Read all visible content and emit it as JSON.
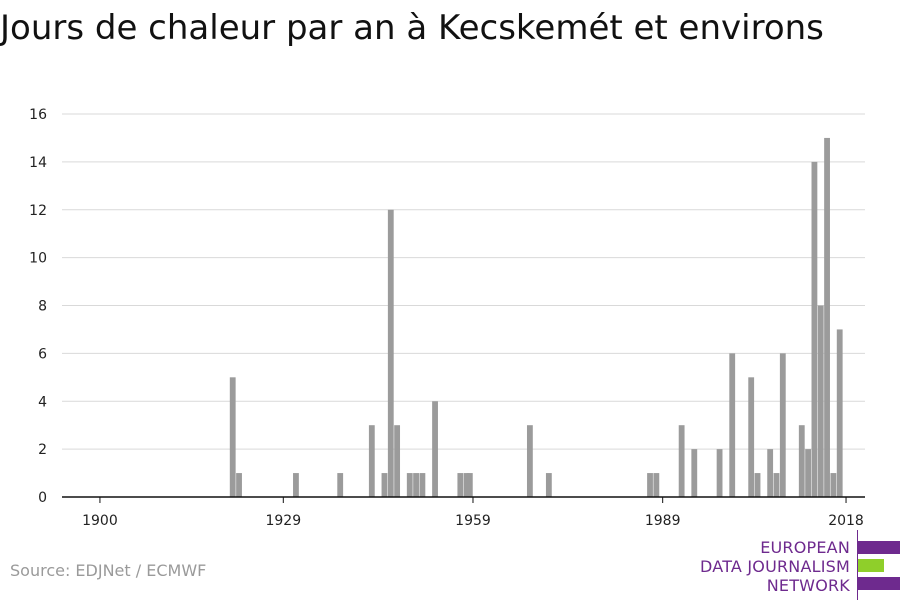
{
  "title": "Jours de chaleur par an à Kecskemét et environs",
  "source": "Source: EDJNet / ECMWF",
  "logo": {
    "lines": [
      "EUROPEAN",
      "DATA JOURNALISM",
      "NETWORK"
    ],
    "colors": [
      "#6e2a8e",
      "#8fcf2a",
      "#6e2a8e"
    ]
  },
  "chart_data": {
    "type": "bar",
    "title": "Jours de chaleur par an à Kecskemét et environs",
    "xlabel": "",
    "ylabel": "",
    "xlim": [
      1894,
      2021
    ],
    "ylim": [
      0,
      16
    ],
    "x_ticks": [
      1900,
      1929,
      1959,
      1989,
      2018
    ],
    "y_ticks": [
      0,
      2,
      4,
      6,
      8,
      10,
      12,
      14,
      16
    ],
    "grid": true,
    "bar_color": "#9b9b9b",
    "years": [
      1921,
      1922,
      1931,
      1938,
      1943,
      1945,
      1946,
      1947,
      1949,
      1950,
      1951,
      1953,
      1957,
      1958,
      1958.5,
      1968,
      1971,
      1987,
      1988,
      1992,
      1994,
      1998,
      2000,
      2003,
      2004,
      2006,
      2007,
      2008,
      2011,
      2012,
      2013,
      2014,
      2015,
      2016,
      2017
    ],
    "values": [
      5,
      1,
      1,
      1,
      3,
      1,
      12,
      3,
      1,
      1,
      1,
      4,
      1,
      1,
      1,
      3,
      1,
      1,
      1,
      3,
      2,
      2,
      6,
      5,
      1,
      2,
      1,
      6,
      3,
      2,
      14,
      8,
      15,
      1,
      7
    ]
  }
}
